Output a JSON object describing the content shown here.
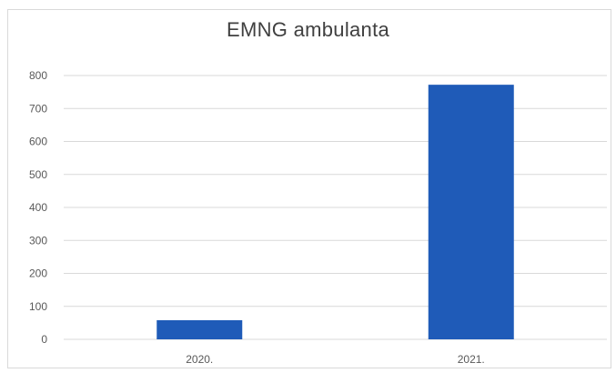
{
  "chart_data": {
    "type": "bar",
    "title": "EMNG ambulanta",
    "categories": [
      "2020.",
      "2021."
    ],
    "values": [
      58,
      772
    ],
    "xlabel": "",
    "ylabel": "",
    "ylim": [
      0,
      800
    ],
    "yticks": [
      0,
      100,
      200,
      300,
      400,
      500,
      600,
      700,
      800
    ],
    "grid": true,
    "legend": "none",
    "bar_color": "#1f5bb8",
    "grid_color": "#d9d9d9",
    "text_color": "#595959"
  }
}
